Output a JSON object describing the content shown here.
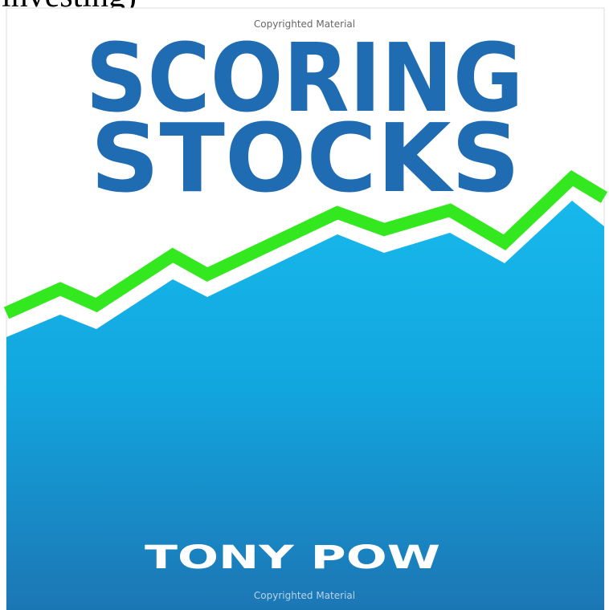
{
  "header": {
    "text": "investing)"
  },
  "cover": {
    "notice_top": "Copyrighted Material",
    "title_line1": "SCORING",
    "title_line2": "STOCKS",
    "author": "TONY POW",
    "notice_bottom": "Copyrighted Material"
  }
}
